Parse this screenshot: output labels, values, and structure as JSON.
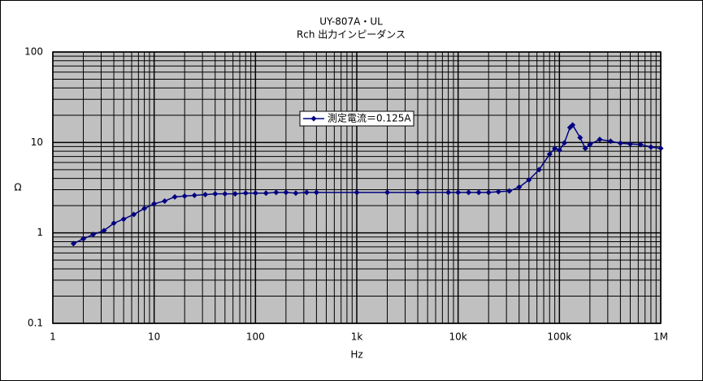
{
  "chart_data": {
    "type": "line",
    "title": "UY-807A・UL",
    "subtitle": "Rch 出力インピーダンス",
    "x_label": "Hz",
    "y_label": "Ω",
    "x_log": true,
    "y_log": true,
    "grid": true,
    "minor_grid": true,
    "xlim": [
      1,
      1000000
    ],
    "ylim": [
      0.1,
      100
    ],
    "xticks": [
      1,
      10,
      100,
      {
        "value": 1000,
        "label": "1k"
      },
      {
        "value": 10000,
        "label": "10k"
      },
      {
        "value": 100000,
        "label": "100k"
      },
      {
        "value": 1000000,
        "label": "1M"
      }
    ],
    "yticks": [
      0.1,
      1,
      10,
      100
    ],
    "legend": "inside-top",
    "x": [
      1.6,
      2,
      2.5,
      3.2,
      4,
      5,
      6.3,
      8,
      10,
      12.7,
      16,
      20,
      25,
      32,
      40,
      50,
      63,
      80,
      100,
      127,
      160,
      200,
      250,
      320,
      400,
      1000,
      2000,
      4000,
      8000,
      10000,
      12700,
      16000,
      20000,
      25000,
      32000,
      40000,
      50000,
      63000,
      80000,
      90000,
      100000,
      112000,
      127000,
      135000,
      160000,
      180000,
      200000,
      250000,
      320000,
      400000,
      500000,
      630000,
      800000,
      1000000
    ],
    "series": [
      {
        "name": "測定電流＝0.125A",
        "color": "#000080",
        "values": [
          0.76,
          0.86,
          0.96,
          1.06,
          1.28,
          1.42,
          1.6,
          1.86,
          2.1,
          2.25,
          2.5,
          2.55,
          2.6,
          2.65,
          2.7,
          2.7,
          2.7,
          2.75,
          2.75,
          2.75,
          2.8,
          2.8,
          2.75,
          2.8,
          2.8,
          2.8,
          2.8,
          2.8,
          2.8,
          2.8,
          2.8,
          2.8,
          2.8,
          2.85,
          2.9,
          3.2,
          3.85,
          5.0,
          7.4,
          8.6,
          8.2,
          9.9,
          14.6,
          15.6,
          11.3,
          8.6,
          9.5,
          10.8,
          10.3,
          9.8,
          9.6,
          9.5,
          8.9,
          8.6
        ]
      }
    ]
  }
}
